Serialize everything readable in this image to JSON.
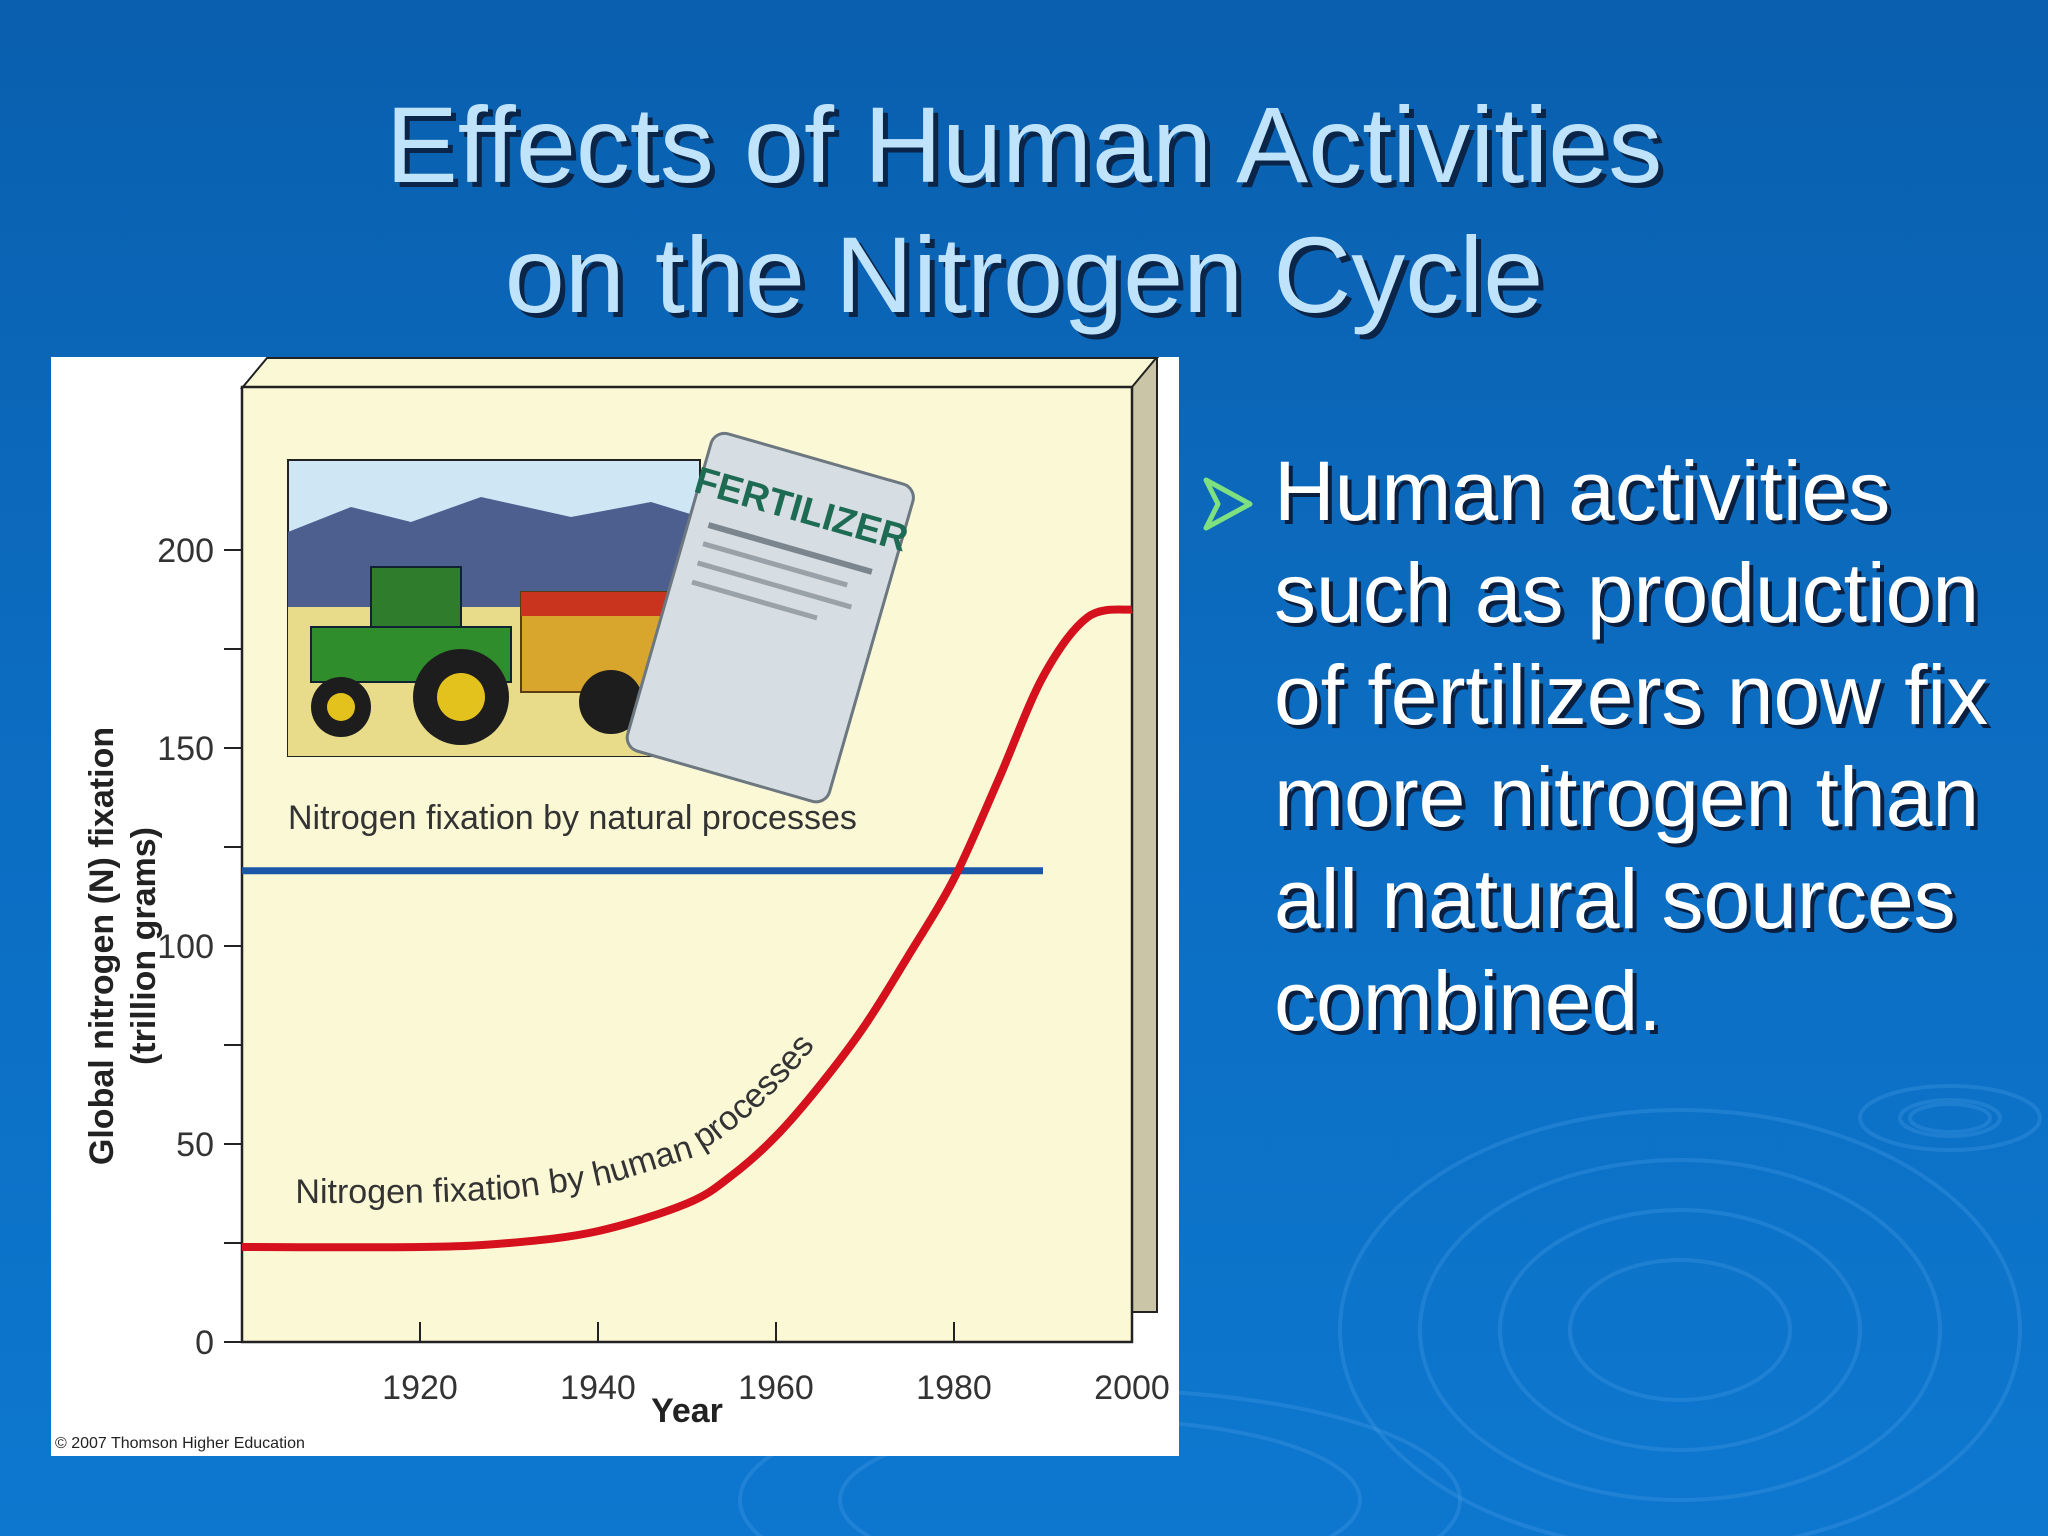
{
  "slide": {
    "title_line1": "Effects of Human Activities",
    "title_line2": "on the Nitrogen Cycle",
    "bullet_icon": "arrow-bullet-icon",
    "bullet_text": "Human activities such as production of fertilizers now fix more nitrogen than all natural sources combined."
  },
  "colors": {
    "background": "#0c6cc0",
    "title": "#bfe3fb",
    "bullet_arrow": "#7ee07e",
    "chart_bg": "#fbf8d6",
    "human_series": "#d4111c",
    "natural_series": "#1a57a8"
  },
  "chart_data": {
    "type": "line",
    "xlabel": "Year",
    "ylabel_line1": "Global nitrogen (N) fixation",
    "ylabel_line2": "(trillion grams)",
    "xlim": [
      1900,
      2000
    ],
    "ylim": [
      0,
      200
    ],
    "xticks": [
      1920,
      1940,
      1960,
      1980,
      2000
    ],
    "yticks": [
      0,
      50,
      100,
      150,
      200
    ],
    "copyright": "© 2007 Thomson Higher Education",
    "inset_illustration": "tractor-and-fertilizer-bag",
    "inset_bag_label": "FERTILIZER",
    "series": [
      {
        "name": "Nitrogen fixation by natural processes",
        "color": "#1a57a8",
        "x": [
          1900,
          1990
        ],
        "y": [
          119,
          119
        ]
      },
      {
        "name": "Nitrogen fixation by human processes",
        "color": "#d4111c",
        "x": [
          1900,
          1920,
          1930,
          1940,
          1950,
          1955,
          1960,
          1965,
          1970,
          1975,
          1980,
          1985,
          1990,
          1995,
          2000
        ],
        "y": [
          24,
          24,
          25,
          28,
          35,
          42,
          52,
          65,
          80,
          98,
          117,
          142,
          168,
          183,
          185
        ]
      }
    ]
  }
}
